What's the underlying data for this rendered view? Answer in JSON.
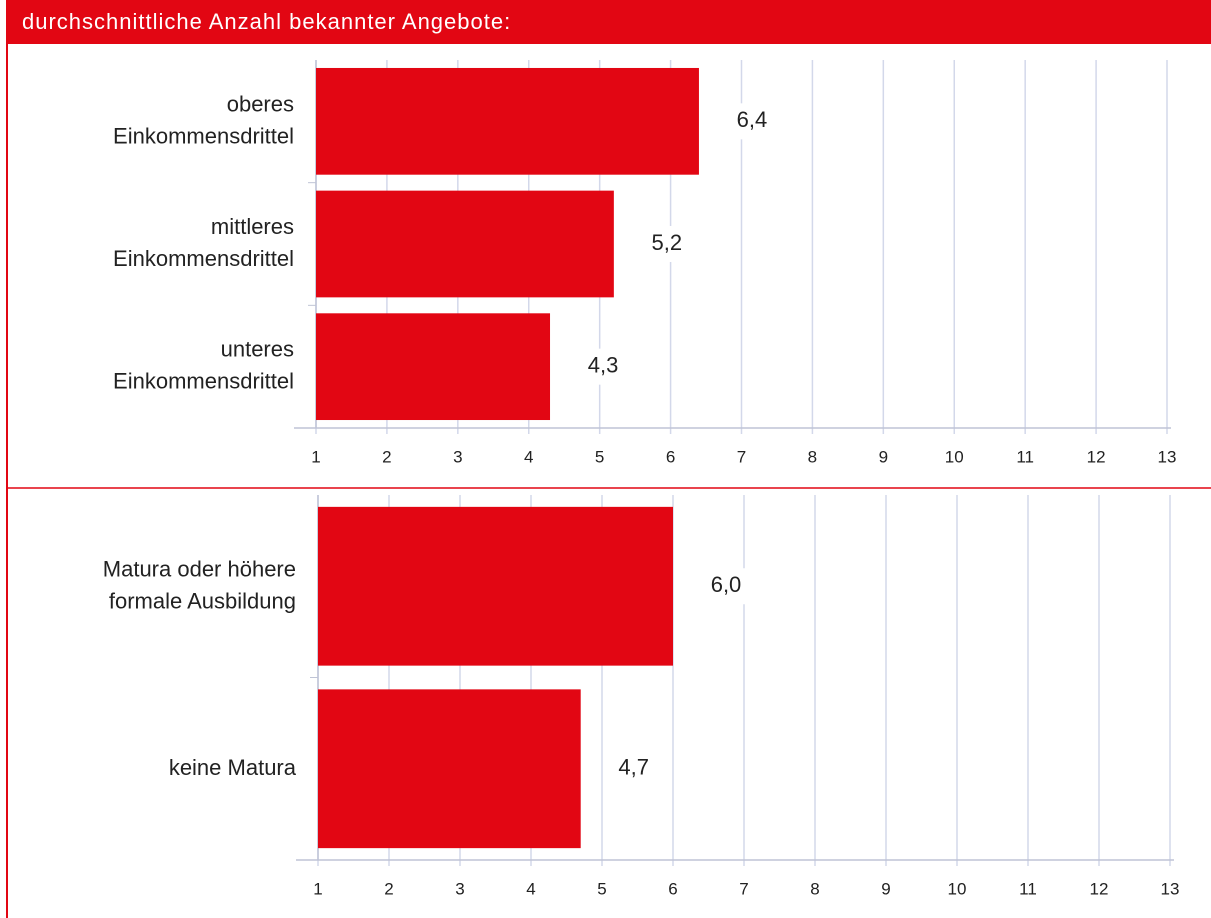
{
  "title": "durchschnittliche Anzahl bekannter Angebote:",
  "chart_data": [
    {
      "type": "bar",
      "orientation": "horizontal",
      "categories": [
        "oberes\nEinkommensdrittel",
        "mittleres\nEinkommensdrittel",
        "unteres\nEinkommensdrittel"
      ],
      "values": [
        6.4,
        5.2,
        4.3
      ],
      "value_labels": [
        "6,4",
        "5,2",
        "4,3"
      ],
      "color": "#e20613",
      "xlim": [
        1,
        13
      ],
      "xticks": [
        1,
        2,
        3,
        4,
        5,
        6,
        7,
        8,
        9,
        10,
        11,
        12,
        13
      ],
      "grid": true
    },
    {
      "type": "bar",
      "orientation": "horizontal",
      "categories": [
        "Matura oder höhere\nformale Ausbildung",
        "keine Matura"
      ],
      "values": [
        6.0,
        4.7
      ],
      "value_labels": [
        "6,0",
        "4,7"
      ],
      "color": "#e20613",
      "xlim": [
        1,
        13
      ],
      "xticks": [
        1,
        2,
        3,
        4,
        5,
        6,
        7,
        8,
        9,
        10,
        11,
        12,
        13
      ],
      "grid": true
    }
  ]
}
